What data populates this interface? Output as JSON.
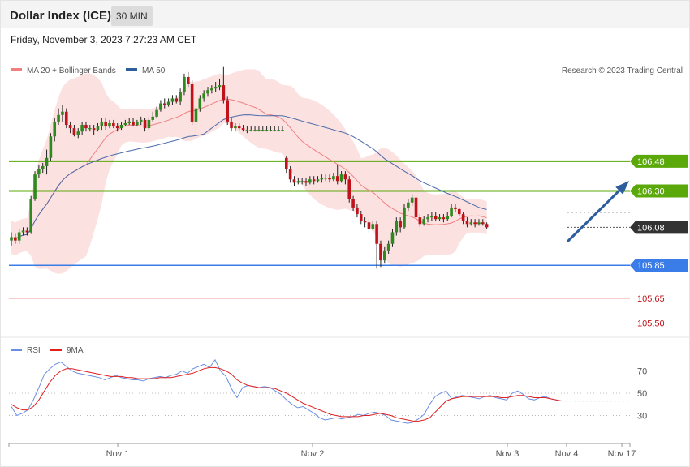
{
  "header": {
    "title": "Dollar Index (ICE)",
    "interval": "30 MIN",
    "timestamp": "Friday, November 3, 2023 7:27:23 AM CET"
  },
  "legend": {
    "ma20": "MA 20 + Bollinger Bands",
    "ma50": "MA 50",
    "credit": "Research © 2023 Trading Central",
    "rsi": "RSI",
    "rsi_ma": "9MA"
  },
  "colors": {
    "up": "#2e8a1e",
    "down": "#c0121b",
    "band": "#fcdcdc",
    "ma20": "#f08080",
    "ma50": "#4a6aa8",
    "resistance": "#5aa80a",
    "pivot": "#3a7ce8",
    "support": "#e05a5a",
    "arrow": "#2c5e9e",
    "rsi": "#6a8ee0",
    "rsi_ma": "#e02020"
  },
  "chart_data": [
    {
      "type": "candlestick",
      "title": "Dollar Index (ICE)",
      "interval": "30 MIN",
      "x_labels": [
        "Nov 1",
        "Nov 2",
        "Nov 3",
        "Nov 4",
        "Nov 17"
      ],
      "ylim": [
        105.38,
        106.97
      ],
      "levels": [
        {
          "value": 106.48,
          "label": "106.48",
          "role": "resistance"
        },
        {
          "value": 106.3,
          "label": "106.30",
          "role": "resistance"
        },
        {
          "value": 106.08,
          "label": "106.08",
          "role": "current"
        },
        {
          "value": 105.85,
          "label": "105.85",
          "role": "pivot"
        },
        {
          "value": 105.65,
          "label": "105.65",
          "role": "support"
        },
        {
          "value": 105.5,
          "label": "105.50",
          "role": "support"
        }
      ],
      "candles": [
        [
          106.0,
          106.02,
          106.05,
          105.97
        ],
        [
          106.02,
          106.0,
          106.04,
          105.98
        ],
        [
          106.0,
          106.05,
          106.07,
          105.98
        ],
        [
          106.05,
          106.06,
          106.08,
          106.03
        ],
        [
          106.06,
          106.05,
          106.08,
          106.03
        ],
        [
          106.05,
          106.25,
          106.27,
          106.04
        ],
        [
          106.25,
          106.4,
          106.42,
          106.24
        ],
        [
          106.4,
          106.43,
          106.46,
          106.38
        ],
        [
          106.43,
          106.45,
          106.47,
          106.41
        ],
        [
          106.45,
          106.5,
          106.55,
          106.4
        ],
        [
          106.5,
          106.63,
          106.65,
          106.48
        ],
        [
          106.63,
          106.72,
          106.74,
          106.6
        ],
        [
          106.72,
          106.76,
          106.8,
          106.7
        ],
        [
          106.76,
          106.78,
          106.82,
          106.72
        ],
        [
          106.78,
          106.7,
          106.8,
          106.68
        ],
        [
          106.7,
          106.68,
          106.72,
          106.65
        ],
        [
          106.68,
          106.64,
          106.7,
          106.63
        ],
        [
          106.64,
          106.66,
          106.68,
          106.62
        ],
        [
          106.66,
          106.7,
          106.72,
          106.64
        ],
        [
          106.7,
          106.68,
          106.72,
          106.66
        ],
        [
          106.68,
          106.68,
          106.7,
          106.66
        ],
        [
          106.68,
          106.67,
          106.7,
          106.64
        ],
        [
          106.67,
          106.69,
          106.71,
          106.66
        ],
        [
          106.69,
          106.72,
          106.74,
          106.67
        ],
        [
          106.72,
          106.69,
          106.74,
          106.67
        ],
        [
          106.69,
          106.71,
          106.73,
          106.68
        ],
        [
          106.71,
          106.69,
          106.73,
          106.68
        ],
        [
          106.69,
          106.68,
          106.71,
          106.66
        ],
        [
          106.68,
          106.7,
          106.72,
          106.67
        ],
        [
          106.7,
          106.71,
          106.73,
          106.69
        ],
        [
          106.71,
          106.72,
          106.74,
          106.7
        ],
        [
          106.72,
          106.7,
          106.74,
          106.69
        ],
        [
          106.7,
          106.72,
          106.73,
          106.69
        ],
        [
          106.72,
          106.73,
          106.75,
          106.7
        ],
        [
          106.73,
          106.68,
          106.74,
          106.66
        ],
        [
          106.68,
          106.73,
          106.75,
          106.67
        ],
        [
          106.73,
          106.75,
          106.78,
          106.72
        ],
        [
          106.75,
          106.79,
          106.81,
          106.74
        ],
        [
          106.79,
          106.83,
          106.85,
          106.78
        ],
        [
          106.83,
          106.82,
          106.86,
          106.8
        ],
        [
          106.82,
          106.84,
          106.86,
          106.81
        ],
        [
          106.84,
          106.86,
          106.88,
          106.82
        ],
        [
          106.86,
          106.84,
          106.88,
          106.83
        ],
        [
          106.84,
          106.9,
          106.92,
          106.82
        ],
        [
          106.9,
          106.99,
          107.01,
          106.88
        ],
        [
          106.99,
          106.95,
          107.02,
          106.93
        ],
        [
          106.95,
          106.72,
          106.97,
          106.7
        ],
        [
          106.72,
          106.8,
          106.82,
          106.64
        ],
        [
          106.8,
          106.86,
          106.88,
          106.78
        ],
        [
          106.86,
          106.89,
          106.91,
          106.84
        ],
        [
          106.89,
          106.91,
          106.93,
          106.87
        ],
        [
          106.91,
          106.92,
          106.94,
          106.89
        ],
        [
          106.92,
          106.93,
          106.96,
          106.9
        ],
        [
          106.93,
          106.94,
          106.98,
          106.91
        ],
        [
          106.94,
          106.85,
          107.05,
          106.83
        ],
        [
          106.85,
          106.72,
          106.87,
          106.7
        ],
        [
          106.72,
          106.68,
          106.74,
          106.66
        ],
        [
          106.68,
          106.69,
          106.71,
          106.66
        ],
        [
          106.69,
          106.68,
          106.71,
          106.67
        ],
        [
          106.68,
          106.67,
          106.7,
          106.66
        ],
        [
          106.67,
          106.67,
          106.69,
          106.65
        ],
        [
          106.67,
          106.67,
          106.69,
          106.66
        ],
        [
          106.67,
          106.67,
          106.69,
          106.66
        ],
        [
          106.67,
          106.67,
          106.69,
          106.66
        ],
        [
          106.67,
          106.67,
          106.69,
          106.66
        ],
        [
          106.67,
          106.67,
          106.69,
          106.66
        ],
        [
          106.67,
          106.67,
          106.69,
          106.66
        ],
        [
          106.67,
          106.67,
          106.69,
          106.66
        ],
        [
          106.67,
          106.67,
          106.69,
          106.66
        ],
        [
          106.67,
          106.67,
          106.69,
          106.66
        ],
        [
          106.5,
          106.43,
          106.51,
          106.41
        ],
        [
          106.43,
          106.37,
          106.45,
          106.35
        ],
        [
          106.37,
          106.35,
          106.39,
          106.33
        ],
        [
          106.35,
          106.36,
          106.38,
          106.34
        ],
        [
          106.36,
          106.36,
          106.38,
          106.34
        ],
        [
          106.36,
          106.35,
          106.38,
          106.33
        ],
        [
          106.35,
          106.37,
          106.39,
          106.34
        ],
        [
          106.37,
          106.36,
          106.39,
          106.34
        ],
        [
          106.36,
          106.37,
          106.39,
          106.35
        ],
        [
          106.37,
          106.38,
          106.4,
          106.35
        ],
        [
          106.38,
          106.38,
          106.4,
          106.36
        ],
        [
          106.38,
          106.37,
          106.4,
          106.35
        ],
        [
          106.37,
          106.39,
          106.41,
          106.36
        ],
        [
          106.39,
          106.36,
          106.46,
          106.34
        ],
        [
          106.36,
          106.4,
          106.42,
          106.35
        ],
        [
          106.4,
          106.37,
          106.42,
          106.34
        ],
        [
          106.37,
          106.25,
          106.39,
          106.23
        ],
        [
          106.25,
          106.2,
          106.27,
          106.18
        ],
        [
          106.2,
          106.16,
          106.22,
          106.14
        ],
        [
          106.16,
          106.12,
          106.18,
          106.1
        ],
        [
          106.12,
          106.11,
          106.14,
          106.08
        ],
        [
          106.11,
          106.07,
          106.13,
          106.05
        ],
        [
          106.07,
          106.1,
          106.12,
          106.06
        ],
        [
          106.1,
          105.98,
          106.12,
          105.83
        ],
        [
          105.98,
          105.88,
          106.0,
          105.84
        ],
        [
          105.88,
          105.94,
          105.96,
          105.86
        ],
        [
          105.94,
          105.98,
          106.0,
          105.92
        ],
        [
          105.98,
          106.05,
          106.07,
          105.96
        ],
        [
          106.05,
          106.12,
          106.14,
          106.03
        ],
        [
          106.12,
          106.08,
          106.14,
          106.05
        ],
        [
          106.08,
          106.2,
          106.22,
          106.07
        ],
        [
          106.2,
          106.23,
          106.25,
          106.18
        ],
        [
          106.23,
          106.26,
          106.28,
          106.21
        ],
        [
          106.26,
          106.14,
          106.27,
          106.12
        ],
        [
          106.14,
          106.1,
          106.16,
          106.08
        ],
        [
          106.1,
          106.13,
          106.15,
          106.09
        ],
        [
          106.13,
          106.14,
          106.16,
          106.11
        ],
        [
          106.14,
          106.15,
          106.17,
          106.12
        ],
        [
          106.15,
          106.13,
          106.17,
          106.12
        ],
        [
          106.13,
          106.14,
          106.16,
          106.12
        ],
        [
          106.14,
          106.13,
          106.16,
          106.11
        ],
        [
          106.13,
          106.15,
          106.17,
          106.12
        ],
        [
          106.15,
          106.2,
          106.22,
          106.14
        ],
        [
          106.2,
          106.19,
          106.22,
          106.17
        ],
        [
          106.19,
          106.16,
          106.2,
          106.15
        ],
        [
          106.16,
          106.12,
          106.17,
          106.1
        ],
        [
          106.12,
          106.1,
          106.14,
          106.08
        ],
        [
          106.1,
          106.11,
          106.13,
          106.09
        ],
        [
          106.11,
          106.1,
          106.13,
          106.08
        ],
        [
          106.1,
          106.11,
          106.13,
          106.09
        ],
        [
          106.11,
          106.1,
          106.13,
          106.09
        ],
        [
          106.1,
          106.08,
          106.11,
          106.07
        ]
      ],
      "series": [
        {
          "name": "MA 20 + Bollinger Bands"
        },
        {
          "name": "MA 50"
        }
      ]
    },
    {
      "type": "line",
      "title": "",
      "x_labels": [
        "Nov 1",
        "Nov 2",
        "Nov 3",
        "Nov 4",
        "Nov 17"
      ],
      "y_ticks": [
        70,
        50,
        30
      ],
      "ylim": [
        10,
        90
      ],
      "series": [
        {
          "name": "RSI",
          "values": [
            38,
            30,
            32,
            35,
            44,
            55,
            67,
            72,
            76,
            78,
            74,
            70,
            68,
            67,
            66,
            65,
            64,
            62,
            64,
            66,
            64,
            63,
            62,
            62,
            61,
            63,
            64,
            65,
            64,
            66,
            67,
            70,
            68,
            72,
            74,
            76,
            73,
            80,
            70,
            65,
            54,
            46,
            55,
            57,
            56,
            55,
            56,
            55,
            52,
            49,
            44,
            40,
            37,
            38,
            35,
            32,
            28,
            26,
            27,
            28,
            27,
            28,
            29,
            31,
            30,
            32,
            33,
            32,
            30,
            26,
            25,
            24,
            23,
            24,
            27,
            31,
            40,
            47,
            50,
            52,
            45,
            47,
            48,
            47,
            46,
            45,
            47,
            48,
            46,
            45,
            44,
            50,
            52,
            49,
            45,
            44,
            46,
            47,
            45,
            44,
            43
          ]
        },
        {
          "name": "9MA",
          "values": [
            40,
            37,
            35,
            35,
            38,
            44,
            52,
            60,
            66,
            70,
            72,
            72,
            71,
            70,
            69,
            68,
            67,
            66,
            65,
            65,
            65,
            64,
            64,
            63,
            63,
            63,
            63,
            64,
            64,
            64,
            65,
            66,
            67,
            68,
            70,
            72,
            73,
            73,
            72,
            70,
            67,
            62,
            59,
            57,
            56,
            55,
            55,
            55,
            54,
            52,
            50,
            47,
            44,
            41,
            39,
            37,
            35,
            33,
            31,
            30,
            29,
            29,
            29,
            29,
            30,
            30,
            31,
            32,
            31,
            30,
            28,
            27,
            26,
            25,
            25,
            26,
            28,
            33,
            38,
            43,
            45,
            46,
            47,
            47,
            47,
            47,
            47,
            47,
            47,
            46,
            46,
            47,
            48,
            48,
            47,
            46,
            46,
            46,
            45,
            44,
            43
          ]
        }
      ]
    }
  ]
}
